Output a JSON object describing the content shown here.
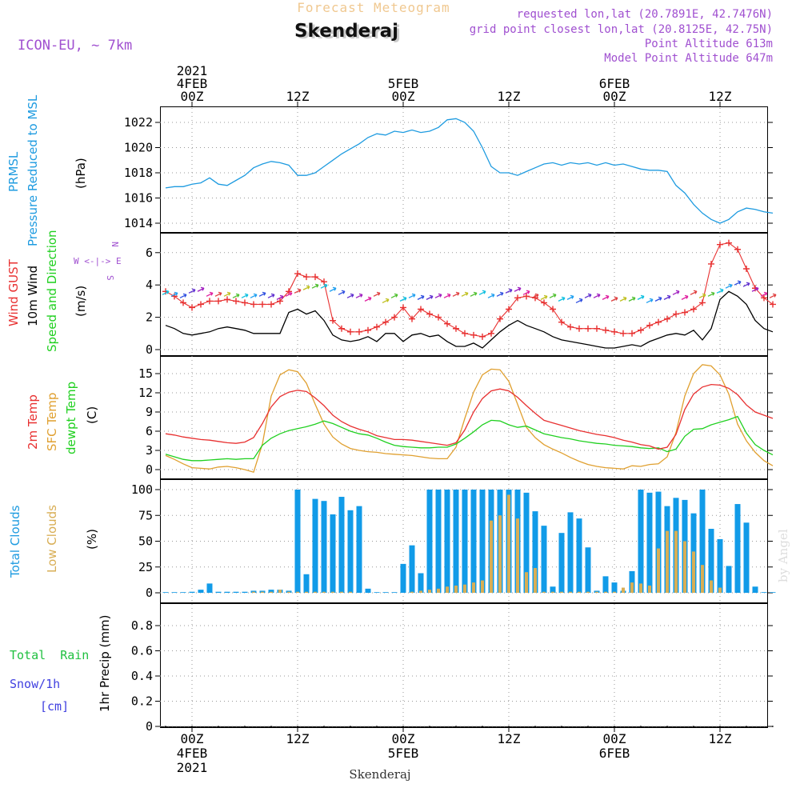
{
  "header": {
    "title": "Forecast Meteogram",
    "location": "Skenderaj",
    "model": "ICON-EU, ~ 7km",
    "requested": "requested lon,lat (20.7891E, 42.7476N)",
    "gridpoint": "grid point closest lon,lat (20.8125E, 42.75N)",
    "point_altitude": "Point Altitude 613m",
    "model_altitude": "Model Point Altitude 647m",
    "footer_location": "Skenderaj",
    "credit": "by Angel"
  },
  "time_axis": {
    "start_hour": -3,
    "end_hour": 66,
    "day_ticks": [
      {
        "hour": 0,
        "top": [
          "2021",
          "4FEB",
          "00Z"
        ],
        "bottom": [
          "00Z",
          "4FEB",
          "2021"
        ]
      },
      {
        "hour": 12,
        "top": [
          "12Z"
        ],
        "bottom": [
          "12Z"
        ]
      },
      {
        "hour": 24,
        "top": [
          "5FEB",
          "00Z"
        ],
        "bottom": [
          "00Z",
          "5FEB"
        ]
      },
      {
        "hour": 36,
        "top": [
          "12Z"
        ],
        "bottom": [
          "12Z"
        ]
      },
      {
        "hour": 48,
        "top": [
          "6FEB",
          "00Z"
        ],
        "bottom": [
          "00Z",
          "6FEB"
        ]
      },
      {
        "hour": 60,
        "top": [
          "12Z"
        ],
        "bottom": [
          "12Z"
        ]
      }
    ]
  },
  "colors": {
    "pressure": "#1e9be0",
    "gust": "#e83030",
    "wind": "#000000",
    "temp": "#e83030",
    "sfc": "#e0a030",
    "dew": "#20d020",
    "total_cloud": "#119be8",
    "low_cloud": "#d8ae55",
    "rain": "#20c040",
    "snow": "#4040e0",
    "dir": "#a040e0",
    "title": "#f0c890",
    "meta": "#a050d0"
  },
  "panels": {
    "pressure": {
      "labels": [
        "PRMSL",
        "Pressure Reduced to MSL"
      ],
      "unit": "(hPa)"
    },
    "wind": {
      "labels": [
        "Wind GUST",
        "10m Wind",
        "Speed and Direction"
      ],
      "unit": "(m/s)",
      "compass": [
        "N",
        "W <-|-> E",
        "S"
      ]
    },
    "temp": {
      "labels": [
        "2m Temp",
        "SFC Temp",
        "dewpt Temp"
      ],
      "unit": "(C)"
    },
    "clouds": {
      "labels": [
        "Total Clouds",
        "Low Clouds"
      ],
      "unit": "(%)"
    },
    "precip": {
      "labels": [
        "Total  Rain",
        "Snow/1h",
        "[cm]"
      ],
      "unit": "1hr Precip (mm)"
    }
  },
  "chart_data": [
    {
      "type": "line",
      "title": "PRMSL Pressure Reduced to MSL",
      "ylabel": "(hPa)",
      "ylim": [
        1013.2,
        1023.2
      ],
      "yticks": [
        1014,
        1016,
        1018,
        1020,
        1022
      ],
      "series": [
        {
          "name": "PRMSL",
          "x": [
            -3,
            -2,
            -1,
            0,
            1,
            2,
            3,
            4,
            5,
            6,
            7,
            8,
            9,
            10,
            11,
            12,
            13,
            14,
            15,
            16,
            17,
            18,
            19,
            20,
            21,
            22,
            23,
            24,
            25,
            26,
            27,
            28,
            29,
            30,
            31,
            32,
            33,
            34,
            35,
            36,
            37,
            38,
            39,
            40,
            41,
            42,
            43,
            44,
            45,
            46,
            47,
            48,
            49,
            50,
            51,
            52,
            53,
            54,
            55,
            56,
            57,
            58,
            59,
            60,
            61,
            62,
            63,
            64,
            65,
            66
          ],
          "values": [
            1016.8,
            1016.9,
            1016.9,
            1017.1,
            1017.2,
            1017.6,
            1017.1,
            1017.0,
            1017.4,
            1017.8,
            1018.4,
            1018.7,
            1018.9,
            1018.8,
            1018.6,
            1017.8,
            1017.8,
            1018.0,
            1018.5,
            1019.0,
            1019.5,
            1019.9,
            1020.3,
            1020.8,
            1021.1,
            1021.0,
            1021.3,
            1021.2,
            1021.4,
            1021.2,
            1021.3,
            1021.6,
            1022.2,
            1022.3,
            1022.0,
            1021.3,
            1020.0,
            1018.5,
            1018.0,
            1018.0,
            1017.8,
            1018.1,
            1018.4,
            1018.7,
            1018.8,
            1018.6,
            1018.8,
            1018.7,
            1018.8,
            1018.6,
            1018.8,
            1018.6,
            1018.7,
            1018.5,
            1018.3,
            1018.2,
            1018.2,
            1018.1,
            1017.0,
            1016.4,
            1015.5,
            1014.8,
            1014.3,
            1014.0,
            1014.3,
            1014.9,
            1015.2,
            1015.1,
            1014.9,
            1014.8
          ]
        }
      ]
    },
    {
      "type": "line",
      "title": "Wind GUST / 10m Wind Speed and Direction",
      "ylabel": "(m/s)",
      "ylim": [
        -0.4,
        7
      ],
      "yticks": [
        0,
        2,
        4,
        6
      ],
      "x": [
        -3,
        -2,
        -1,
        0,
        1,
        2,
        3,
        4,
        5,
        6,
        7,
        8,
        9,
        10,
        11,
        12,
        13,
        14,
        15,
        16,
        17,
        18,
        19,
        20,
        21,
        22,
        23,
        24,
        25,
        26,
        27,
        28,
        29,
        30,
        31,
        32,
        33,
        34,
        35,
        36,
        37,
        38,
        39,
        40,
        41,
        42,
        43,
        44,
        45,
        46,
        47,
        48,
        49,
        50,
        51,
        52,
        53,
        54,
        55,
        56,
        57,
        58,
        59,
        60,
        61,
        62,
        63,
        64,
        65,
        66
      ],
      "series": [
        {
          "name": "Wind GUST",
          "markers": "+",
          "values": [
            3.6,
            3.3,
            2.9,
            2.6,
            2.8,
            3.0,
            3.0,
            3.1,
            3.0,
            2.9,
            2.8,
            2.8,
            2.8,
            3.0,
            3.6,
            4.7,
            4.5,
            4.5,
            4.2,
            1.8,
            1.3,
            1.1,
            1.1,
            1.2,
            1.4,
            1.7,
            2.0,
            2.6,
            1.9,
            2.5,
            2.2,
            2.0,
            1.6,
            1.3,
            1.0,
            0.9,
            0.8,
            1.0,
            1.9,
            2.5,
            3.2,
            3.3,
            3.2,
            2.9,
            2.5,
            1.7,
            1.4,
            1.3,
            1.3,
            1.3,
            1.2,
            1.1,
            1.0,
            1.0,
            1.2,
            1.5,
            1.7,
            1.9,
            2.2,
            2.3,
            2.5,
            2.9,
            5.3,
            6.5,
            6.6,
            6.2,
            5.0,
            3.8,
            3.2,
            2.8
          ]
        },
        {
          "name": "10m Wind",
          "values": [
            1.5,
            1.3,
            1.0,
            0.9,
            1.0,
            1.1,
            1.3,
            1.4,
            1.3,
            1.2,
            1.0,
            1.0,
            1.0,
            1.0,
            2.3,
            2.5,
            2.2,
            2.4,
            1.8,
            0.9,
            0.6,
            0.5,
            0.6,
            0.8,
            0.5,
            1.0,
            1.0,
            0.5,
            0.9,
            1.0,
            0.8,
            0.9,
            0.5,
            0.2,
            0.2,
            0.4,
            0.1,
            0.6,
            1.1,
            1.5,
            1.8,
            1.5,
            1.3,
            1.1,
            0.8,
            0.6,
            0.5,
            0.4,
            0.3,
            0.2,
            0.1,
            0.1,
            0.2,
            0.3,
            0.2,
            0.5,
            0.7,
            0.9,
            1.0,
            0.9,
            1.2,
            0.6,
            1.3,
            3.1,
            3.6,
            3.3,
            2.8,
            1.8,
            1.3,
            1.1
          ]
        },
        {
          "name": "Wind arrows",
          "values": [
            3.5,
            3.4,
            3.3,
            3.6,
            3.7,
            3.4,
            3.4,
            3.4,
            3.3,
            3.3,
            3.3,
            3.4,
            3.3,
            3.2,
            3.4,
            3.6,
            3.8,
            3.9,
            3.9,
            3.7,
            3.5,
            3.3,
            3.3,
            3.1,
            3.4,
            3.0,
            3.3,
            3.1,
            3.3,
            3.2,
            3.2,
            3.3,
            3.3,
            3.4,
            3.4,
            3.4,
            3.5,
            3.3,
            3.4,
            3.6,
            3.7,
            3.5,
            3.3,
            3.2,
            3.3,
            3.1,
            3.2,
            3.0,
            3.3,
            3.3,
            3.2,
            3.1,
            3.1,
            3.1,
            3.2,
            3.0,
            3.1,
            3.2,
            3.5,
            3.2,
            3.5,
            3.3,
            3.4,
            3.6,
            3.9,
            4.1,
            4.0,
            3.7,
            3.4,
            3.3
          ]
        }
      ]
    },
    {
      "type": "line",
      "title": "2m Temp / SFC Temp / dewpt Temp",
      "ylabel": "(C)",
      "ylim": [
        -1.2,
        17
      ],
      "yticks": [
        0,
        3,
        6,
        9,
        12,
        15
      ],
      "x": [
        -3,
        -2,
        -1,
        0,
        1,
        2,
        3,
        4,
        5,
        6,
        7,
        8,
        9,
        10,
        11,
        12,
        13,
        14,
        15,
        16,
        17,
        18,
        19,
        20,
        21,
        22,
        23,
        24,
        25,
        26,
        27,
        28,
        29,
        30,
        31,
        32,
        33,
        34,
        35,
        36,
        37,
        38,
        39,
        40,
        41,
        42,
        43,
        44,
        45,
        46,
        47,
        48,
        49,
        50,
        51,
        52,
        53,
        54,
        55,
        56,
        57,
        58,
        59,
        60,
        61,
        62,
        63,
        64,
        65,
        66
      ],
      "series": [
        {
          "name": "2m Temp",
          "values": [
            5.6,
            5.4,
            5.1,
            4.9,
            4.7,
            4.6,
            4.4,
            4.2,
            4.1,
            4.3,
            5.0,
            7.2,
            9.8,
            11.4,
            12.1,
            12.4,
            12.2,
            11.2,
            10.0,
            8.5,
            7.5,
            6.8,
            6.3,
            5.9,
            5.3,
            5.0,
            4.7,
            4.7,
            4.6,
            4.4,
            4.2,
            4.0,
            3.8,
            4.2,
            6.2,
            9.0,
            11.1,
            12.3,
            12.6,
            12.3,
            11.3,
            10.0,
            8.8,
            7.7,
            7.3,
            6.9,
            6.5,
            6.1,
            5.8,
            5.5,
            5.3,
            5.0,
            4.6,
            4.3,
            3.9,
            3.7,
            3.2,
            3.5,
            5.5,
            9.4,
            11.8,
            12.9,
            13.3,
            13.2,
            12.7,
            11.7,
            10.1,
            9.0,
            8.5,
            8.0
          ]
        },
        {
          "name": "SFC Temp",
          "values": [
            2.2,
            1.6,
            0.9,
            0.3,
            0.2,
            0.1,
            0.4,
            0.5,
            0.3,
            0.0,
            -0.4,
            4.0,
            11.5,
            14.8,
            15.6,
            15.3,
            13.5,
            10.2,
            7.1,
            5.1,
            4.0,
            3.3,
            3.0,
            2.8,
            2.7,
            2.5,
            2.4,
            2.3,
            2.2,
            2.0,
            1.8,
            1.7,
            1.7,
            3.5,
            8.0,
            12.1,
            14.8,
            15.7,
            15.6,
            13.8,
            10.2,
            6.6,
            5.0,
            3.9,
            3.2,
            2.6,
            1.9,
            1.3,
            0.8,
            0.5,
            0.3,
            0.2,
            0.1,
            0.6,
            0.5,
            0.8,
            0.9,
            2.0,
            5.8,
            11.5,
            15.0,
            16.4,
            16.2,
            14.8,
            11.8,
            7.1,
            4.5,
            2.7,
            1.4,
            0.6
          ]
        },
        {
          "name": "dewpt Temp",
          "values": [
            2.4,
            2.0,
            1.6,
            1.4,
            1.4,
            1.5,
            1.6,
            1.7,
            1.6,
            1.7,
            1.7,
            3.8,
            4.9,
            5.6,
            6.1,
            6.4,
            6.7,
            7.1,
            7.6,
            7.2,
            6.6,
            6.0,
            5.6,
            5.4,
            4.9,
            4.3,
            3.8,
            3.6,
            3.5,
            3.4,
            3.4,
            3.5,
            3.5,
            4.0,
            4.9,
            5.9,
            7.0,
            7.7,
            7.6,
            7.0,
            6.6,
            6.8,
            6.2,
            5.6,
            5.3,
            5.0,
            4.8,
            4.5,
            4.3,
            4.1,
            4.0,
            3.8,
            3.7,
            3.6,
            3.4,
            3.3,
            3.4,
            2.8,
            3.2,
            5.2,
            6.3,
            6.4,
            7.0,
            7.4,
            7.8,
            8.3,
            5.7,
            3.9,
            3.0,
            2.3
          ]
        }
      ]
    },
    {
      "type": "bar",
      "title": "Total Clouds / Low Clouds",
      "ylabel": "(%)",
      "ylim": [
        -5,
        107
      ],
      "yticks": [
        0,
        25,
        50,
        75,
        100
      ],
      "x": [
        -3,
        -2,
        -1,
        0,
        1,
        2,
        3,
        4,
        5,
        6,
        7,
        8,
        9,
        10,
        11,
        12,
        13,
        14,
        15,
        16,
        17,
        18,
        19,
        20,
        21,
        22,
        23,
        24,
        25,
        26,
        27,
        28,
        29,
        30,
        31,
        32,
        33,
        34,
        35,
        36,
        37,
        38,
        39,
        40,
        41,
        42,
        43,
        44,
        45,
        46,
        47,
        48,
        49,
        50,
        51,
        52,
        53,
        54,
        55,
        56,
        57,
        58,
        59,
        60,
        61,
        62,
        63,
        64,
        65,
        66
      ],
      "series": [
        {
          "name": "Total Clouds",
          "values": [
            0,
            0,
            0,
            1,
            3,
            9,
            1,
            1,
            1,
            1,
            2,
            2,
            3,
            3,
            2,
            100,
            18,
            91,
            89,
            76,
            93,
            80,
            84,
            4,
            0,
            0,
            0,
            28,
            46,
            19,
            100,
            100,
            100,
            100,
            100,
            100,
            100,
            100,
            100,
            100,
            100,
            97,
            79,
            65,
            6,
            58,
            78,
            72,
            44,
            2,
            16,
            10,
            2,
            21,
            100,
            97,
            98,
            84,
            92,
            90,
            77,
            100,
            62,
            52,
            26,
            86,
            68,
            6,
            0,
            0
          ]
        },
        {
          "name": "Low Clouds",
          "values": [
            0,
            0,
            0,
            0,
            0,
            0,
            0,
            0,
            0,
            0,
            1,
            1,
            1,
            3,
            1,
            1,
            1,
            1,
            1,
            1,
            1,
            1,
            0,
            0,
            0,
            0,
            0,
            0,
            1,
            2,
            3,
            4,
            6,
            7,
            8,
            10,
            12,
            70,
            75,
            95,
            72,
            20,
            24,
            1,
            1,
            1,
            1,
            1,
            1,
            1,
            1,
            1,
            5,
            10,
            9,
            7,
            43,
            60,
            60,
            50,
            40,
            27,
            12,
            5,
            0,
            0,
            0,
            0,
            0,
            0
          ]
        }
      ]
    },
    {
      "type": "bar",
      "title": "1hr Precip",
      "ylabel": "1hr Precip (mm)",
      "ylim": [
        0,
        0.97
      ],
      "yticks": [
        0,
        0.2,
        0.4,
        0.6,
        0.8
      ],
      "series": [
        {
          "name": "Total Rain",
          "values": []
        },
        {
          "name": "Snow/1h",
          "values": []
        }
      ]
    }
  ]
}
